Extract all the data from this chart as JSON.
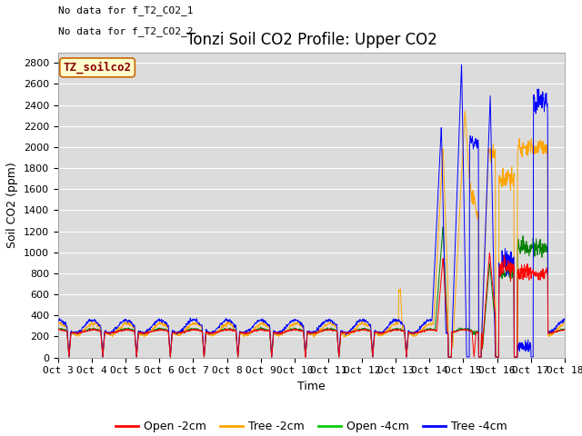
{
  "title": "Tonzi Soil CO2 Profile: Upper CO2",
  "xlabel": "Time",
  "ylabel": "Soil CO2 (ppm)",
  "ylim": [
    0,
    2900
  ],
  "yticks": [
    0,
    200,
    400,
    600,
    800,
    1000,
    1200,
    1400,
    1600,
    1800,
    2000,
    2200,
    2400,
    2600,
    2800
  ],
  "xtick_labels": [
    "Oct 3",
    "Oct 4",
    "Oct 5",
    "Oct 6",
    "Oct 7",
    "Oct 8",
    "Oct 9",
    "Oct 10",
    "Oct 11",
    "Oct 12",
    "Oct 13",
    "Oct 14",
    "Oct 15",
    "Oct 16",
    "Oct 17",
    "Oct 18"
  ],
  "no_data_text_1": "No data for f_T2_CO2_1",
  "no_data_text_2": "No data for f_T2_CO2_2",
  "watermark_text": "TZ_soilco2",
  "legend_labels": [
    "Open -2cm",
    "Tree -2cm",
    "Open -4cm",
    "Tree -4cm"
  ],
  "legend_colors": [
    "#ff0000",
    "#ffa500",
    "#00cc00",
    "#0000ff"
  ],
  "line_colors": {
    "open_2cm": "#ff0000",
    "tree_2cm": "#ffa500",
    "open_4cm": "#008000",
    "tree_4cm": "#0000ff"
  },
  "plot_bg_color": "#dcdcdc",
  "grid_color": "#ffffff",
  "title_fontsize": 12,
  "axis_label_fontsize": 9,
  "tick_fontsize": 8,
  "nodata_fontsize": 8,
  "watermark_fontsize": 9,
  "legend_fontsize": 9
}
